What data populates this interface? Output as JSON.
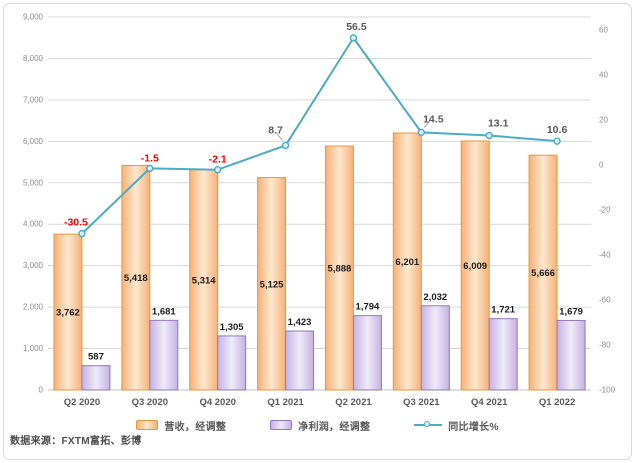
{
  "frame": {
    "background": "#ffffff",
    "border_color": "#d9d9d9"
  },
  "source_note": "数据来源：FXTM富拓、彭博",
  "legend": {
    "revenue_label": "营收，经调整",
    "net_profit_label": "净利润，经调整",
    "yoy_label": "同比增长%"
  },
  "chart_data": {
    "type": "combo-bar-line",
    "categories": [
      "Q2 2020",
      "Q3 2020",
      "Q4 2020",
      "Q1 2021",
      "Q2 2021",
      "Q3 2021",
      "Q4 2021",
      "Q1 2022"
    ],
    "series": [
      {
        "name": "营收，经调整",
        "type": "bar",
        "axis": "left",
        "values": [
          3762,
          5418,
          5314,
          5125,
          5888,
          6201,
          6009,
          5666
        ]
      },
      {
        "name": "净利润，经调整",
        "type": "bar",
        "axis": "left",
        "values": [
          587,
          1681,
          1305,
          1423,
          1794,
          2032,
          1721,
          1679
        ]
      },
      {
        "name": "同比增长%",
        "type": "line",
        "axis": "right",
        "values": [
          -30.5,
          -1.5,
          -2.1,
          8.7,
          56.5,
          14.5,
          13.1,
          10.6
        ]
      }
    ],
    "left_axis": {
      "min": 0,
      "max": 9000,
      "step": 1000
    },
    "right_axis": {
      "min": -100,
      "max": 60,
      "step": 20
    },
    "gridlines": true,
    "legend_position": "bottom",
    "colors": {
      "revenue_fill_edge": "#F6B176",
      "revenue_fill_center": "#FDE8D0",
      "revenue_border": "#E8973F",
      "net_profit_fill_edge": "#C6B2E2",
      "net_profit_fill_center": "#EFEBF8",
      "net_profit_border": "#9177BB",
      "line": "#4BACC6",
      "marker_fill": "#DCEEF4",
      "label_negative": "#FF0000",
      "label_positive": "#595959",
      "bar_label": "#1C1C1C",
      "axis_text": "#8C8C8C",
      "x_label_text": "#595959",
      "gridline": "#D9D9D9",
      "zero_axis": "#C0C0C0",
      "leader_line": "#A6A6A6"
    }
  }
}
